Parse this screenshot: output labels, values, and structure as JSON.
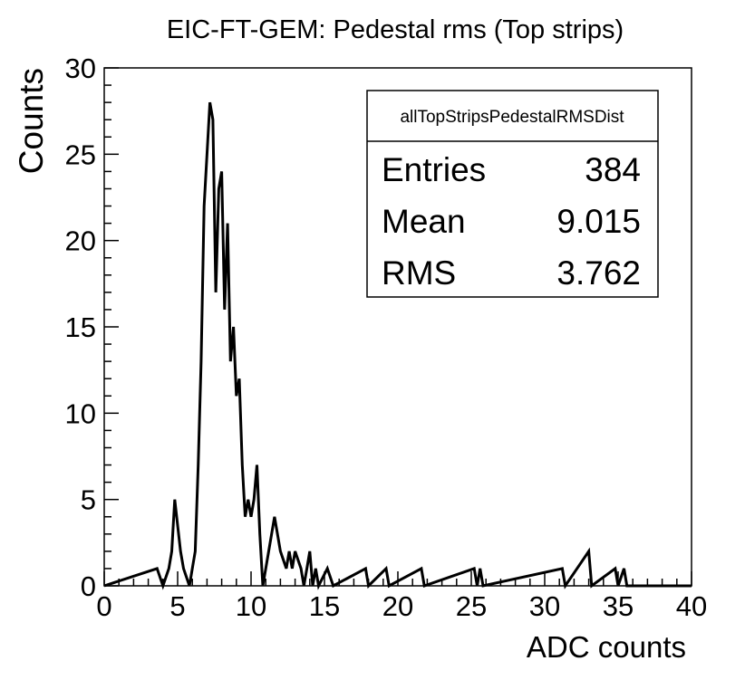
{
  "chart_data": {
    "type": "bar",
    "title": "EIC-FT-GEM: Pedestal rms (Top strips)",
    "xlabel": "ADC counts",
    "ylabel": "Counts",
    "xlim": [
      0,
      40
    ],
    "ylim": [
      0,
      30
    ],
    "x_ticks": [
      0,
      5,
      10,
      15,
      20,
      25,
      30,
      35,
      40
    ],
    "x_tick_labels": [
      "0",
      "5",
      "10",
      "15",
      "20",
      "25",
      "30",
      "35",
      "40"
    ],
    "y_ticks": [
      0,
      5,
      10,
      15,
      20,
      25,
      30
    ],
    "y_tick_labels": [
      "0",
      "5",
      "10",
      "15",
      "20",
      "25",
      "30"
    ],
    "grid": false,
    "legend": "none",
    "series": [
      {
        "bin_width": 0.2,
        "bins_low": [
          3.6,
          3.8,
          4.0,
          4.2,
          4.4,
          4.6,
          4.8,
          5.0,
          5.2,
          5.4,
          5.6,
          5.8,
          6.0,
          6.2,
          6.4,
          6.6,
          6.8,
          7.0,
          7.2,
          7.4,
          7.6,
          7.8,
          8.0,
          8.2,
          8.4,
          8.6,
          8.8,
          9.0,
          9.2,
          9.4,
          9.6,
          9.8,
          10.0,
          10.2,
          10.4,
          10.6,
          10.8,
          11.0,
          11.2,
          11.4,
          11.6,
          11.8,
          12.0,
          12.2,
          12.4,
          12.6,
          12.8,
          13.0,
          13.2,
          13.4,
          13.6,
          13.8,
          14.0,
          14.2,
          14.4,
          14.6,
          14.8,
          15.0,
          15.2,
          15.4,
          15.6,
          15.8,
          16.0,
          17.8,
          18.0,
          19.2,
          19.4,
          21.6,
          21.8,
          25.2,
          25.4,
          25.6,
          25.8,
          31.2,
          31.4,
          33.0,
          33.2,
          34.8,
          35.0,
          35.4,
          35.6
        ],
        "counts": [
          1,
          1,
          0,
          0,
          1,
          2,
          5,
          5,
          2,
          1,
          1,
          0,
          1,
          2,
          7,
          13,
          22,
          25,
          28,
          27,
          17,
          23,
          24,
          16,
          21,
          13,
          15,
          11,
          12,
          7,
          4,
          5,
          4,
          5,
          7,
          3,
          0,
          0,
          0,
          0,
          4,
          4,
          2,
          2,
          1,
          2,
          1,
          2,
          2,
          1,
          0,
          1,
          2,
          0,
          1,
          0,
          0,
          0,
          1,
          1,
          0,
          0,
          0,
          1,
          0,
          1,
          0,
          1,
          0,
          1,
          0,
          1,
          0,
          1,
          0,
          2,
          0,
          1,
          0,
          1,
          0
        ]
      }
    ]
  },
  "stats_box": {
    "name": "allTopStripsPedestalRMSDist",
    "rows": [
      {
        "label": "Entries",
        "value": "384"
      },
      {
        "label": "Mean",
        "value": "9.015"
      },
      {
        "label": "RMS",
        "value": "3.762"
      }
    ]
  }
}
